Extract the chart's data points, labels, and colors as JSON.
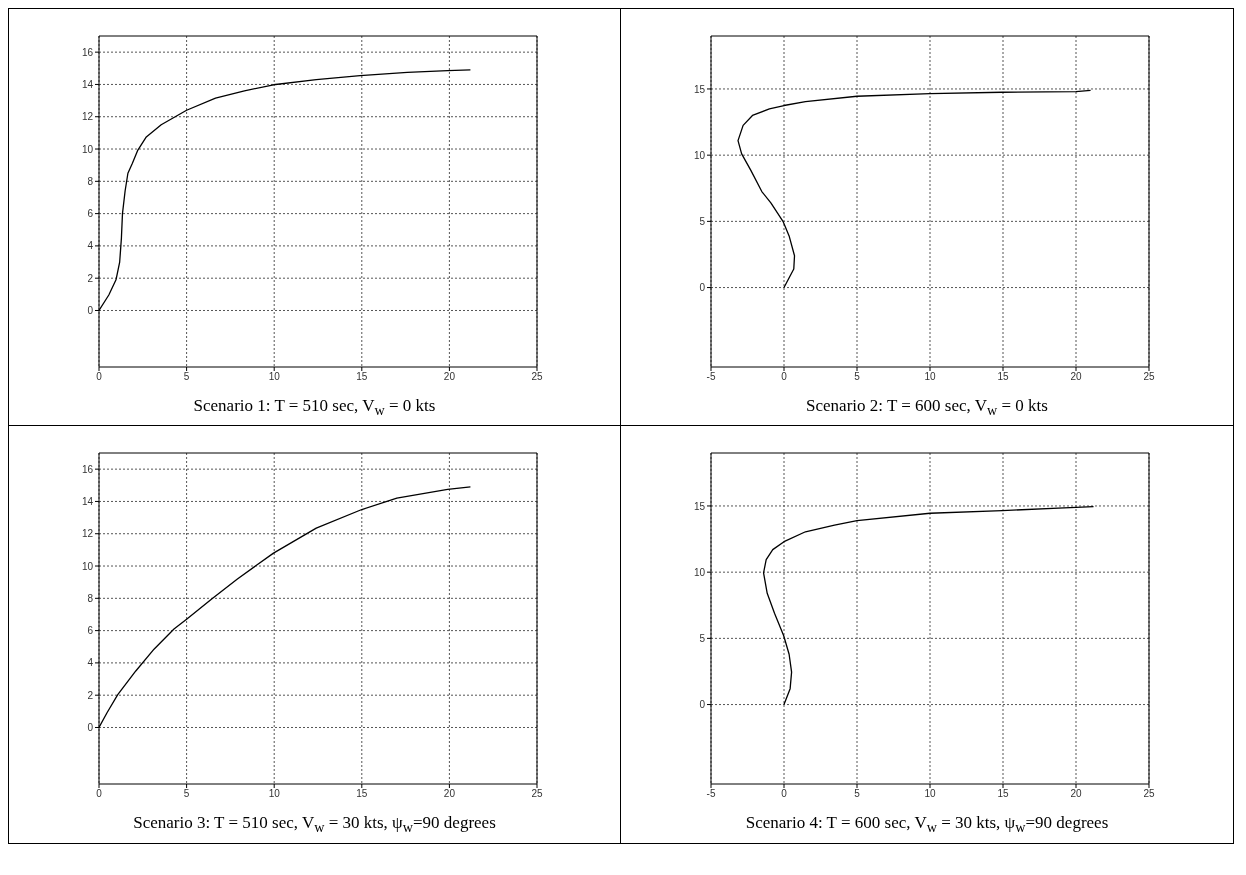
{
  "chart_data": [
    {
      "type": "line",
      "title": "Scenario 1: T = 510 sec, V$_{w}$ = 0 kts",
      "xlim": [
        0,
        25
      ],
      "xticks": [
        0,
        5,
        10,
        15,
        20,
        25
      ],
      "ylim": [
        -3.5,
        17
      ],
      "yticks": [
        0,
        2,
        4,
        6,
        8,
        10,
        12,
        14,
        16
      ],
      "grid": true,
      "marker": "none",
      "line_style": "solid",
      "series": [
        {
          "color": "#000000",
          "x": [
            0,
            0.56,
            0.97,
            1.18,
            1.28,
            1.34,
            1.49,
            1.65,
            1.9,
            2.2,
            2.7,
            3.55,
            5,
            6.65,
            8.3,
            9.96,
            12.4,
            14.9,
            17.6,
            19.9,
            21.2
          ],
          "values": [
            0,
            0.96,
            1.9,
            3.0,
            4.5,
            6.0,
            7.4,
            8.5,
            9.1,
            9.9,
            10.75,
            11.5,
            12.4,
            13.15,
            13.6,
            13.98,
            14.3,
            14.55,
            14.75,
            14.85,
            14.9
          ]
        }
      ]
    },
    {
      "type": "line",
      "title": "Scenario 2: T = 600 sec, V$_{w}$ = 0 kts",
      "xlim": [
        -5,
        25
      ],
      "xticks": [
        -5,
        0,
        5,
        10,
        15,
        20,
        25
      ],
      "ylim": [
        -6,
        19
      ],
      "yticks": [
        0,
        5,
        10,
        15
      ],
      "grid": true,
      "marker": "none",
      "line_style": "solid",
      "series": [
        {
          "color": "#000000",
          "x": [
            0,
            0.67,
            0.72,
            0.35,
            -0.07,
            -0.9,
            -1.52,
            -2.27,
            -2.9,
            -3.15,
            -2.8,
            -2.16,
            -1.0,
            0,
            1.47,
            5,
            10,
            14.95,
            20,
            21
          ],
          "values": [
            0,
            1.4,
            2.4,
            3.9,
            5.0,
            6.4,
            7.25,
            8.85,
            10.1,
            11.1,
            12.25,
            13.0,
            13.5,
            13.75,
            14.05,
            14.45,
            14.65,
            14.75,
            14.8,
            14.9
          ]
        }
      ]
    },
    {
      "type": "line",
      "title": "Scenario 3: T = 510 sec, V$_{w}$ = 30 kts, ψ$_{w}$=90 degrees",
      "xlim": [
        0,
        25
      ],
      "xticks": [
        0,
        5,
        10,
        15,
        20,
        25
      ],
      "ylim": [
        -3.5,
        17
      ],
      "yticks": [
        0,
        2,
        4,
        6,
        8,
        10,
        12,
        14,
        16
      ],
      "grid": true,
      "marker": "none",
      "line_style": "solid",
      "series": [
        {
          "color": "#000000",
          "x": [
            0,
            0.45,
            1.07,
            2.1,
            3.14,
            4.28,
            5,
            6.45,
            7.9,
            9.96,
            12.4,
            15,
            17,
            19.9,
            21.2
          ],
          "values": [
            0,
            0.9,
            2.04,
            3.5,
            4.85,
            6.1,
            6.7,
            7.98,
            9.2,
            10.8,
            12.35,
            13.5,
            14.2,
            14.75,
            14.9
          ]
        }
      ]
    },
    {
      "type": "line",
      "title": "Scenario 4: T = 600 sec, V$_{w}$ = 30 kts, ψ$_{w}$=90 degrees",
      "xlim": [
        -5,
        25
      ],
      "xticks": [
        -5,
        0,
        5,
        10,
        15,
        20,
        25
      ],
      "ylim": [
        -6,
        19
      ],
      "yticks": [
        0,
        5,
        10,
        15
      ],
      "grid": true,
      "marker": "none",
      "line_style": "solid",
      "series": [
        {
          "color": "#000000",
          "x": [
            0,
            0.42,
            0.52,
            0.35,
            -0.02,
            -0.65,
            -1.15,
            -1.4,
            -1.22,
            -0.77,
            0,
            1.47,
            3.46,
            5,
            10,
            14.95,
            20,
            21.2
          ],
          "values": [
            0,
            1.2,
            2.45,
            3.8,
            5.2,
            6.9,
            8.4,
            9.95,
            10.95,
            11.7,
            12.3,
            13.05,
            13.55,
            13.9,
            14.45,
            14.65,
            14.9,
            14.95
          ]
        }
      ]
    }
  ]
}
